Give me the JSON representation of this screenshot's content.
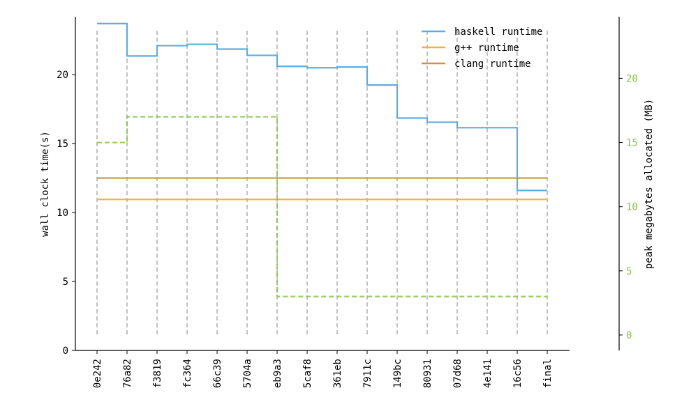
{
  "chart_data": {
    "type": "line",
    "step": "post",
    "categories": [
      "0e242",
      "76a82",
      "f3819",
      "fc364",
      "66c39",
      "5704a",
      "eb9a3",
      "5caf8",
      "361eb",
      "7911c",
      "149bc",
      "80931",
      "07d68",
      "4e141",
      "16c56",
      "final"
    ],
    "ylabel": "wall clock time(s)",
    "ylim": [
      0,
      24.2
    ],
    "yticks": [
      0,
      5,
      10,
      15,
      20
    ],
    "y2label": "peak megabytes allocated (MB)",
    "y2lim": [
      -1.2,
      24.8
    ],
    "y2ticks": [
      0,
      5,
      10,
      15,
      20
    ],
    "legend_position": "top-right",
    "grid": "vertical dashed at each category",
    "series": [
      {
        "name": "haskell runtime",
        "axis": "left",
        "color": "#5DADE2",
        "style": "solid",
        "values": [
          23.7,
          21.35,
          22.1,
          22.2,
          21.85,
          21.4,
          20.6,
          20.5,
          20.55,
          19.25,
          16.85,
          16.55,
          16.15,
          16.15,
          11.6,
          11.6
        ]
      },
      {
        "name": "g++ runtime",
        "axis": "left",
        "color": "#F5B041",
        "style": "solid",
        "values": [
          10.95,
          10.95,
          10.95,
          10.95,
          10.95,
          10.95,
          10.95,
          10.95,
          10.95,
          10.95,
          10.95,
          10.95,
          10.95,
          10.95,
          10.95,
          10.95
        ]
      },
      {
        "name": "clang runtime",
        "axis": "left",
        "color": "#C99445",
        "style": "solid",
        "values": [
          12.5,
          12.5,
          12.5,
          12.5,
          12.5,
          12.5,
          12.5,
          12.5,
          12.5,
          12.5,
          12.5,
          12.5,
          12.5,
          12.5,
          12.5,
          12.5
        ]
      },
      {
        "name": "",
        "axis": "right",
        "color": "#8BC34A",
        "style": "dashed",
        "values": [
          15,
          17,
          17,
          17,
          17,
          17,
          3,
          3,
          3,
          3,
          3,
          3,
          3,
          3,
          3,
          3
        ]
      }
    ],
    "colors": {
      "axis": "#000000",
      "right_axis_text": "#8BC34A",
      "vgrid": "#999999"
    }
  }
}
